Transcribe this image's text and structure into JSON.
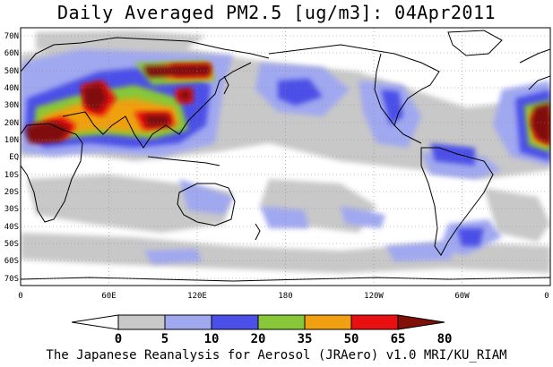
{
  "title": "Daily Averaged PM2.5 [ug/m3]: 04Apr2011",
  "credit": "The Japanese Reanalysis for Aerosol (JRAero) v1.0 MRI/KU_RIAM",
  "map": {
    "lat_labels": [
      "70N",
      "60N",
      "50N",
      "40N",
      "30N",
      "20N",
      "10N",
      "EQ",
      "10S",
      "20S",
      "30S",
      "40S",
      "50S",
      "60S",
      "70S"
    ],
    "lon_labels": [
      "0",
      "60E",
      "120E",
      "180",
      "120W",
      "60W",
      "0"
    ]
  },
  "colorbar": {
    "levels": [
      "0",
      "5",
      "10",
      "20",
      "35",
      "50",
      "65",
      "80"
    ],
    "colors": [
      "#ffffff",
      "#c8c8c8",
      "#a0a8f0",
      "#4c50e8",
      "#88c838",
      "#f0a010",
      "#e81010",
      "#801008"
    ]
  },
  "palette": {
    "ocean": "#ffffff",
    "coast": "#000000"
  }
}
